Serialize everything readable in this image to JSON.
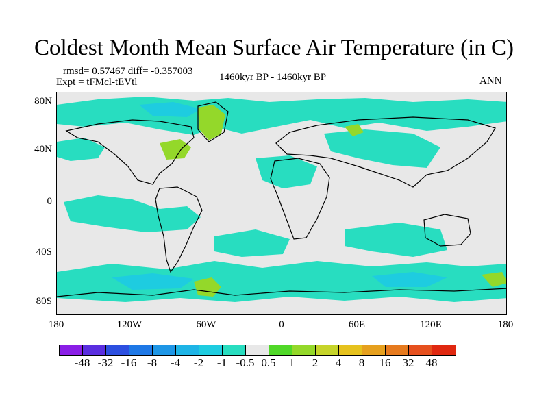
{
  "title": "Coldest Month Mean Surface Air Temperature (in C)",
  "stats": "rmsd= 0.57467 diff= -0.357003",
  "experiment": "Expt = tFMcl-tEVtl",
  "period": "1460kyr BP - 1460kyr BP",
  "season": "ANN",
  "y_ticks": [
    "80N",
    "40N",
    "0",
    "40S",
    "80S"
  ],
  "x_ticks": [
    "180",
    "120W",
    "60W",
    "0",
    "60E",
    "120E",
    "180"
  ],
  "colorbar": {
    "labels": [
      "-48",
      "-32",
      "-16",
      "-8",
      "-4",
      "-2",
      "-1",
      "-0.5",
      "0.5",
      "1",
      "2",
      "4",
      "8",
      "16",
      "32",
      "48"
    ],
    "colors": [
      "#8a1ee6",
      "#5a2ee0",
      "#2c4fe0",
      "#1e78e6",
      "#1e96e6",
      "#1eb4e6",
      "#1ecce0",
      "#28ddc0",
      "#e8e8e8",
      "#50d828",
      "#94d82a",
      "#c6d42a",
      "#e6c21e",
      "#e6a01e",
      "#e67a1e",
      "#e6501e",
      "#e02810"
    ]
  },
  "map_colors": {
    "background": "#e8e8e8",
    "cool_light": "#28ddc0",
    "cool_mid": "#1ecce0",
    "cool_dark": "#1eb4e6",
    "warm_light": "#50d828",
    "warm_mid": "#94d82a",
    "warm_strong": "#c6d42a",
    "coast": "#000000"
  }
}
